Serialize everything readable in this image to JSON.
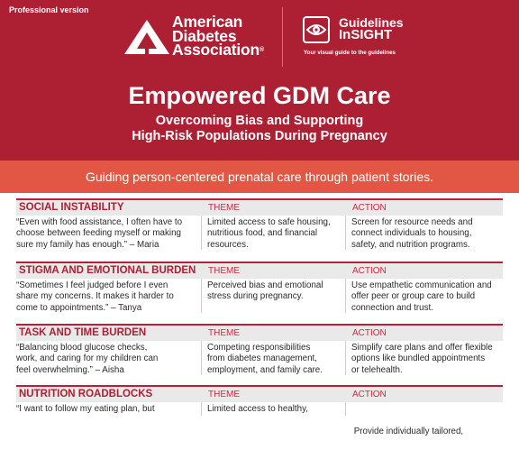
{
  "header": {
    "version_label": "Professional version",
    "org_name_lines": [
      "American",
      "Diabetes",
      "Association"
    ],
    "registered_mark": "®",
    "guidelines_brand_lines": [
      "Guidelines",
      "InSIGHT"
    ],
    "guidelines_tagline": "Your visual guide to the guidelines"
  },
  "title": "Empowered GDM Care",
  "subtitle_lines": [
    "Overcoming Bias and Supporting",
    "High-Risk Populations During Pregnancy"
  ],
  "banner": "Guiding person-centered prenatal care through patient stories.",
  "columns": {
    "theme": "THEME",
    "action": "ACTION"
  },
  "sections": [
    {
      "title": "SOCIAL INSTABILITY",
      "quote_lines": [
        "“Even with food assistance, I often have to",
        "choose between feeding myself or making",
        "sure my family has enough.” – Maria"
      ],
      "theme_lines": [
        "Limited access to safe housing,",
        "nutritious food, and financial",
        "resources."
      ],
      "action_lines": [
        "Screen for resource needs and",
        "connect individuals to housing,",
        "safety, and nutrition programs."
      ]
    },
    {
      "title": "STIGMA AND EMOTIONAL BURDEN",
      "quote_lines": [
        "“Sometimes I feel judged before I even",
        "share my concerns. It makes it harder to",
        "come to appointments.” – Tanya"
      ],
      "theme_lines": [
        "Perceived bias and emotional",
        "stress during pregnancy."
      ],
      "action_lines": [
        "Use empathetic communication and",
        "offer peer or group care to build",
        "connection and trust."
      ]
    },
    {
      "title": "TASK AND TIME BURDEN",
      "quote_lines": [
        "“Balancing blood glucose checks,",
        "work, and caring for my children can",
        "feel overwhelming.” – Aisha"
      ],
      "theme_lines": [
        "Competing responsibilities",
        "from diabetes management,",
        "employment, and family care."
      ],
      "action_lines": [
        "Simplify care plans and offer flexible",
        "options like bundled appointments",
        "or telehealth."
      ]
    },
    {
      "title": "NUTRITION ROADBLOCKS",
      "quote_lines": [
        "“I want to follow my eating plan, but"
      ],
      "theme_lines": [
        "Limited access to healthy,"
      ],
      "action_lines": [
        " Provide individually tailored,"
      ]
    }
  ],
  "colors": {
    "header_red": "#ad1f33",
    "banner_coral": "#e25744",
    "section_accent": "#b5213a"
  }
}
